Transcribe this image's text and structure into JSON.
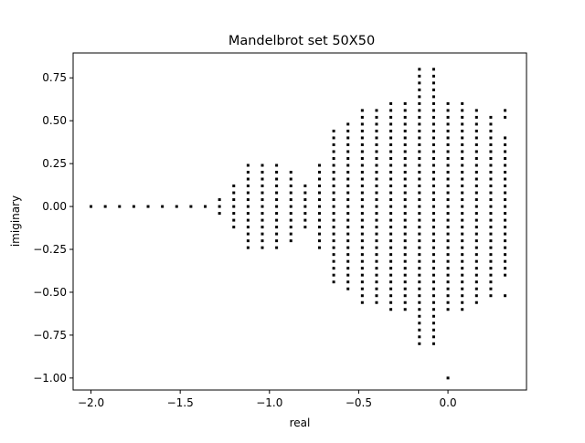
{
  "chart_data": {
    "type": "scatter",
    "title": "Mandelbrot set 50X50",
    "xlabel": "real",
    "ylabel": "imiginary",
    "xlim": [
      -2.1,
      0.44
    ],
    "ylim": [
      -1.07,
      0.895
    ],
    "xticks": [
      -2.0,
      -1.5,
      -1.0,
      -0.5,
      0.0
    ],
    "xtick_labels": [
      "−2.0",
      "−1.5",
      "−1.0",
      "−0.5",
      "0.0"
    ],
    "yticks": [
      -1.0,
      -0.75,
      -0.5,
      -0.25,
      0.0,
      0.25,
      0.5,
      0.75
    ],
    "ytick_labels": [
      "−1.00",
      "−0.75",
      "−0.50",
      "−0.25",
      "0.00",
      "0.25",
      "0.50",
      "0.75"
    ],
    "grid": false,
    "marker_color": "#000000",
    "y_step": 0.04,
    "columns": [
      {
        "x": -2.0,
        "y_min": 0.0,
        "y_max": 0.0
      },
      {
        "x": -1.92,
        "y_min": 0.0,
        "y_max": 0.0
      },
      {
        "x": -1.84,
        "y_min": 0.0,
        "y_max": 0.0
      },
      {
        "x": -1.76,
        "y_min": 0.0,
        "y_max": 0.0
      },
      {
        "x": -1.68,
        "y_min": 0.0,
        "y_max": 0.0
      },
      {
        "x": -1.6,
        "y_min": 0.0,
        "y_max": 0.0
      },
      {
        "x": -1.52,
        "y_min": 0.0,
        "y_max": 0.0
      },
      {
        "x": -1.44,
        "y_min": 0.0,
        "y_max": 0.0
      },
      {
        "x": -1.36,
        "y_min": 0.0,
        "y_max": 0.0
      },
      {
        "x": -1.28,
        "y_min": -0.04,
        "y_max": 0.04
      },
      {
        "x": -1.2,
        "y_min": -0.12,
        "y_max": 0.12
      },
      {
        "x": -1.12,
        "y_min": -0.24,
        "y_max": 0.24
      },
      {
        "x": -1.04,
        "y_min": -0.24,
        "y_max": 0.24
      },
      {
        "x": -0.96,
        "y_min": -0.24,
        "y_max": 0.24
      },
      {
        "x": -0.88,
        "y_min": -0.2,
        "y_max": 0.2
      },
      {
        "x": -0.8,
        "y_min": -0.12,
        "y_max": 0.12
      },
      {
        "x": -0.72,
        "y_min": -0.24,
        "y_max": 0.24
      },
      {
        "x": -0.64,
        "y_min": -0.44,
        "y_max": 0.44
      },
      {
        "x": -0.56,
        "y_min": -0.48,
        "y_max": 0.48
      },
      {
        "x": -0.48,
        "y_min": -0.56,
        "y_max": 0.56
      },
      {
        "x": -0.4,
        "y_min": -0.56,
        "y_max": 0.56
      },
      {
        "x": -0.32,
        "y_min": -0.6,
        "y_max": 0.6
      },
      {
        "x": -0.24,
        "y_min": -0.6,
        "y_max": 0.6
      },
      {
        "x": -0.16,
        "y_min": -0.8,
        "y_max": 0.8
      },
      {
        "x": -0.08,
        "y_min": -0.8,
        "y_max": 0.8
      },
      {
        "x": 0.0,
        "y_min": -0.6,
        "y_max": 0.6
      },
      {
        "x": 0.08,
        "y_min": -0.6,
        "y_max": 0.6
      },
      {
        "x": 0.16,
        "y_min": -0.56,
        "y_max": 0.56
      },
      {
        "x": 0.24,
        "y_min": -0.52,
        "y_max": 0.52
      },
      {
        "x": 0.32,
        "y_min": -0.52,
        "y_max": 0.56
      }
    ],
    "extra_points": [
      {
        "x": 0.0,
        "y": -1.0
      }
    ],
    "gaps": [
      {
        "x": 0.32,
        "y_min": -0.4,
        "y_max": 0.4,
        "except_y_max": 0.4,
        "except_y_min": -0.4,
        "note_values": [
          0.44,
          0.48,
          -0.44,
          -0.48
        ]
      }
    ]
  }
}
